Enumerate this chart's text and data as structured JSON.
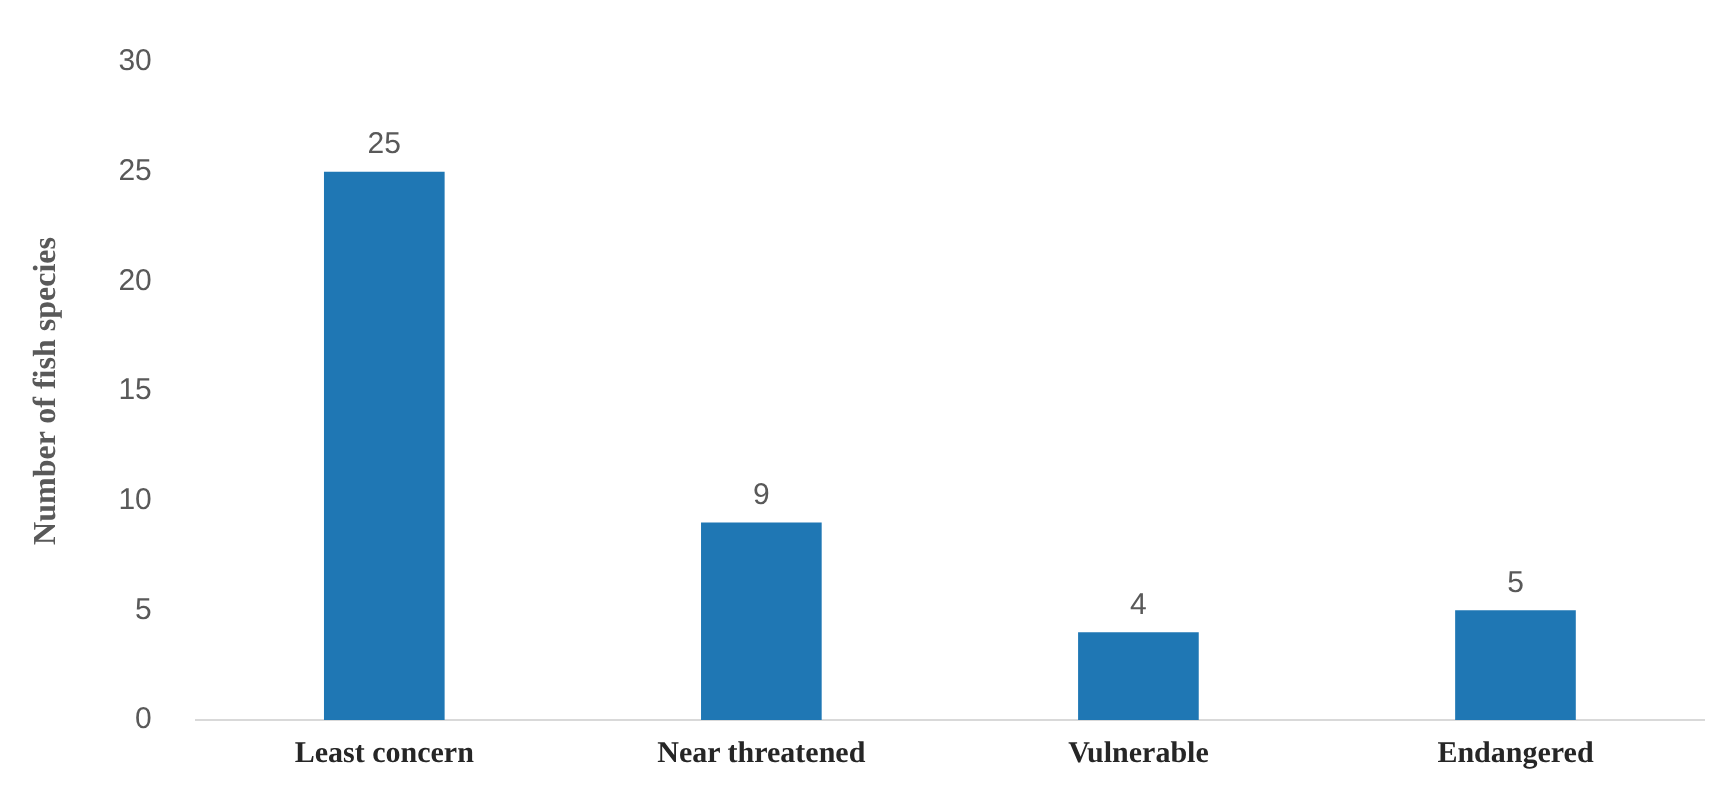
{
  "chart_data": {
    "type": "bar",
    "ylabel": "Number of fish species",
    "categories": [
      "Least concern",
      "Near threatened",
      "Vulnerable",
      "Endangered"
    ],
    "values": [
      25,
      9,
      4,
      5
    ],
    "color": "#1f77b4",
    "ylim": [
      0,
      30
    ],
    "yticks": [
      0,
      5,
      10,
      15,
      20,
      25,
      30
    ],
    "grid": false,
    "legend": false,
    "data_labels": true
  }
}
